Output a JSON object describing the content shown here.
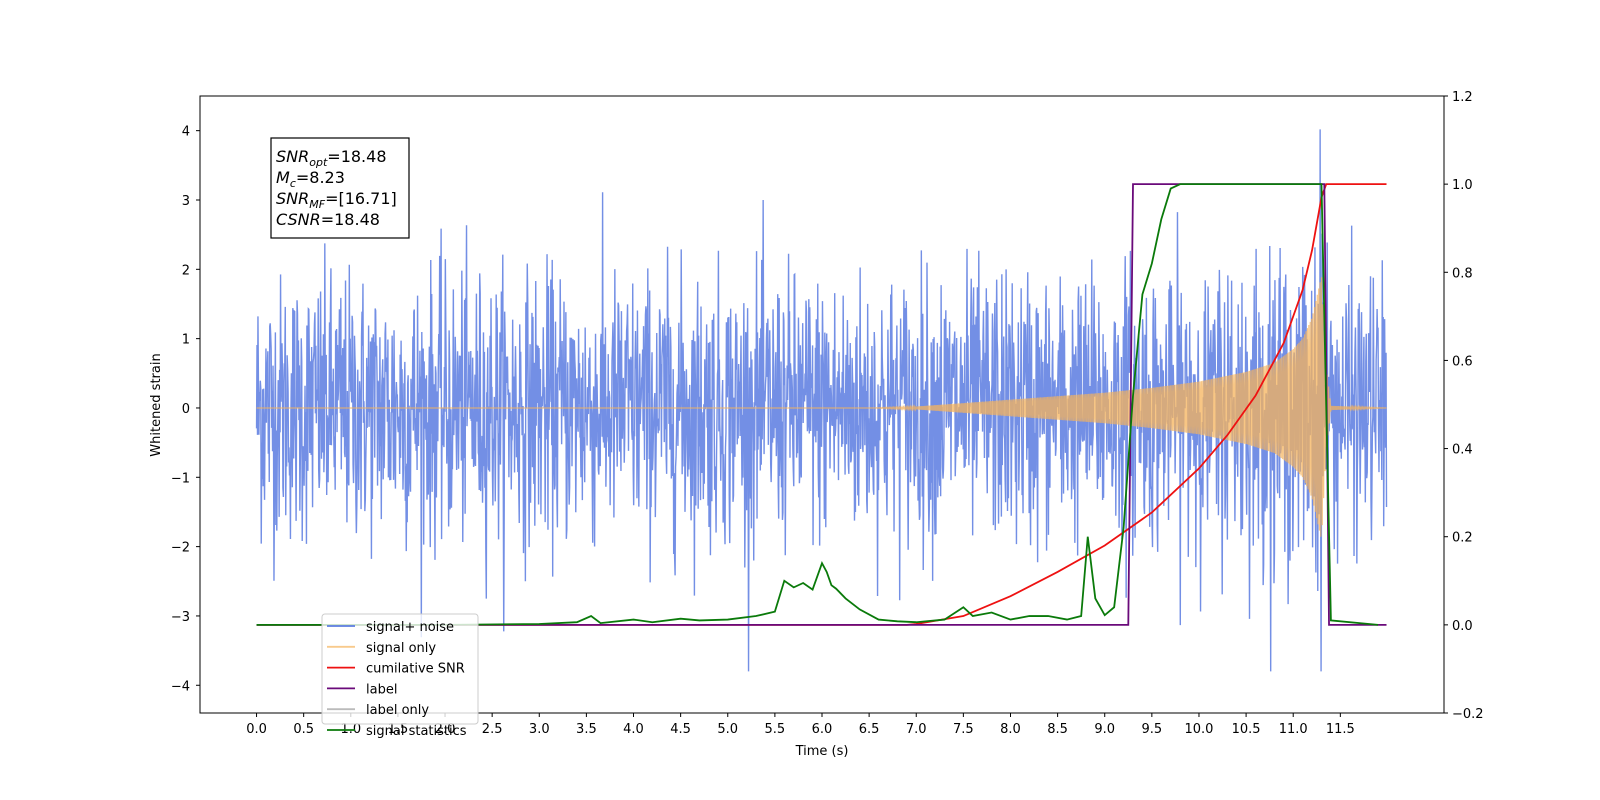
{
  "chart_data": {
    "type": "line",
    "xlabel": "Time (s)",
    "ylabel": "Whitened strain",
    "xlim": [
      -0.6,
      12.6
    ],
    "xticks": [
      0.0,
      0.5,
      1.0,
      1.5,
      2.0,
      2.5,
      3.0,
      3.5,
      4.0,
      4.5,
      5.0,
      5.5,
      6.0,
      6.5,
      7.0,
      7.5,
      8.0,
      8.5,
      9.0,
      9.5,
      10.0,
      10.5,
      11.0,
      11.5
    ],
    "xtick_labels": [
      "0.0",
      "0.5",
      "1.0",
      "1.5",
      "2.0",
      "2.5",
      "3.0",
      "3.5",
      "4.0",
      "4.5",
      "5.0",
      "5.5",
      "6.0",
      "6.5",
      "7.0",
      "7.5",
      "8.0",
      "8.5",
      "9.0",
      "9.5",
      "10.0",
      "10.5",
      "11.0",
      "11.5"
    ],
    "ylim_left": [
      -4.4,
      4.5
    ],
    "yticks_left": [
      4,
      3,
      2,
      1,
      0,
      -1,
      -2,
      -3,
      -4
    ],
    "ytick_labels_left": [
      "4",
      "3",
      "2",
      "1",
      "0",
      "−1",
      "−2",
      "−3",
      "−4"
    ],
    "ylim_right": [
      -0.2,
      1.2
    ],
    "yticks_right": [
      1.2,
      1.0,
      0.8,
      0.6,
      0.4,
      0.2,
      0.0,
      -0.2
    ],
    "ytick_labels_right": [
      "1.2",
      "1.0",
      "0.8",
      "0.6",
      "0.4",
      "0.2",
      "0.0",
      "−0.2"
    ],
    "grid": false,
    "legend_placement": "lower-left",
    "annotation": [
      {
        "name": "SNR",
        "sub": "opt",
        "value": "=18.48"
      },
      {
        "name": "M",
        "sub": "c",
        "value": "=8.23"
      },
      {
        "name": "SNR",
        "sub": "MF",
        "value": "=[16.71]"
      },
      {
        "name": "CSNR",
        "sub": "",
        "value": "=18.48"
      }
    ],
    "series": [
      {
        "name": "signal+ noise",
        "axis": "left",
        "color": "#5b7be0",
        "noise_envelope": {
          "t": [
            0,
            11.99
          ],
          "std": 0.95,
          "max": 4.12,
          "min": -3.8
        }
      },
      {
        "name": "signal only",
        "axis": "left",
        "color": "#f5b35b",
        "chirp_envelope": {
          "t": [
            0,
            6.5,
            7.0,
            7.5,
            8.0,
            8.5,
            9.0,
            9.5,
            10.0,
            10.5,
            10.8,
            11.0,
            11.1,
            11.2,
            11.3,
            11.35,
            11.4,
            11.99
          ],
          "amp": [
            0,
            0,
            0.02,
            0.07,
            0.12,
            0.17,
            0.22,
            0.29,
            0.38,
            0.52,
            0.65,
            0.85,
            1.0,
            1.3,
            1.9,
            0.6,
            0.03,
            0.0
          ]
        }
      },
      {
        "name": "cumilative SNR",
        "axis": "right",
        "color": "#ee1111",
        "x": [
          0,
          6.9,
          7.0,
          7.5,
          8.0,
          8.5,
          9.0,
          9.5,
          10.0,
          10.3,
          10.6,
          10.9,
          11.1,
          11.2,
          11.3,
          11.35,
          11.99
        ],
        "y": [
          0,
          0,
          0.002,
          0.02,
          0.065,
          0.12,
          0.18,
          0.255,
          0.355,
          0.43,
          0.52,
          0.64,
          0.76,
          0.85,
          0.97,
          1.0,
          1.0
        ]
      },
      {
        "name": "label",
        "axis": "right",
        "color": "#6a0a7a",
        "x": [
          0,
          9.25,
          9.3,
          11.33,
          11.38,
          11.99
        ],
        "y": [
          0,
          0,
          1,
          1,
          0,
          0
        ]
      },
      {
        "name": "label only",
        "axis": "right",
        "color": "#bbbbbb",
        "x": [],
        "y": []
      },
      {
        "name": "signal statistics",
        "axis": "right",
        "color": "#0a7a0a",
        "x": [
          0,
          2.0,
          3.0,
          3.4,
          3.55,
          3.65,
          4.0,
          4.2,
          4.5,
          4.7,
          5.0,
          5.3,
          5.5,
          5.6,
          5.7,
          5.8,
          5.9,
          6.0,
          6.05,
          6.1,
          6.15,
          6.25,
          6.4,
          6.6,
          6.8,
          7.0,
          7.3,
          7.5,
          7.6,
          7.8,
          8.0,
          8.2,
          8.4,
          8.6,
          8.75,
          8.82,
          8.9,
          9.0,
          9.1,
          9.2,
          9.3,
          9.4,
          9.5,
          9.6,
          9.7,
          9.8,
          10.0,
          10.5,
          11.0,
          11.3,
          11.35,
          11.4,
          11.9
        ],
        "y": [
          0,
          0,
          0.002,
          0.006,
          0.02,
          0.004,
          0.012,
          0.006,
          0.014,
          0.01,
          0.012,
          0.02,
          0.03,
          0.1,
          0.085,
          0.095,
          0.08,
          0.14,
          0.12,
          0.09,
          0.082,
          0.06,
          0.035,
          0.012,
          0.008,
          0.006,
          0.012,
          0.04,
          0.02,
          0.028,
          0.012,
          0.02,
          0.02,
          0.012,
          0.02,
          0.2,
          0.06,
          0.022,
          0.04,
          0.22,
          0.52,
          0.75,
          0.82,
          0.92,
          0.99,
          1.0,
          1.0,
          1.0,
          1.0,
          1.0,
          0.5,
          0.01,
          0.0
        ]
      }
    ]
  }
}
